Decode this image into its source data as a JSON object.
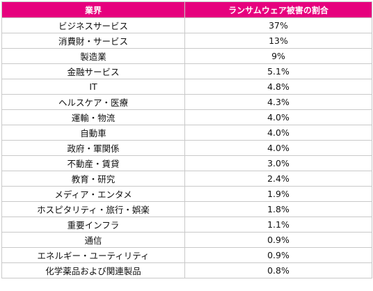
{
  "table": {
    "headers": [
      "業界",
      "ランサムウェア被害の割合"
    ],
    "rows": [
      {
        "industry": "ビジネスサービス",
        "share": "37%"
      },
      {
        "industry": "消費財・サービス",
        "share": "13%"
      },
      {
        "industry": "製造業",
        "share": "9%"
      },
      {
        "industry": "金融サービス",
        "share": "5.1%"
      },
      {
        "industry": "IT",
        "share": "4.8%"
      },
      {
        "industry": "ヘルスケア・医療",
        "share": "4.3%"
      },
      {
        "industry": "運輸・物流",
        "share": "4.0%"
      },
      {
        "industry": "自動車",
        "share": "4.0%"
      },
      {
        "industry": "政府・軍関係",
        "share": "4.0%"
      },
      {
        "industry": "不動産・賃貸",
        "share": "3.0%"
      },
      {
        "industry": "教育・研究",
        "share": "2.4%"
      },
      {
        "industry": "メディア・エンタメ",
        "share": "1.9%"
      },
      {
        "industry": "ホスピタリティ・旅行・娯楽",
        "share": "1.8%"
      },
      {
        "industry": "重要インフラ",
        "share": "1.1%"
      },
      {
        "industry": "通信",
        "share": "0.9%"
      },
      {
        "industry": "エネルギー・ユーティリティ",
        "share": "0.9%"
      },
      {
        "industry": "化学薬品および関連製品",
        "share": "0.8%"
      }
    ]
  },
  "colors": {
    "header_bg": "#e6007e",
    "header_text": "#ffffff",
    "border": "#c9c9c9"
  }
}
